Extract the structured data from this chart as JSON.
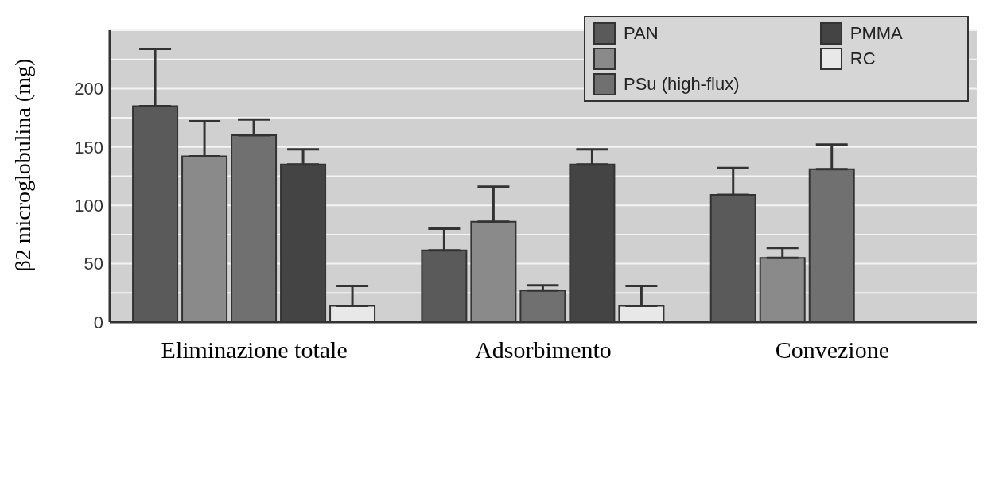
{
  "chart_data": {
    "type": "bar",
    "ylabel": "β2 microglobulina (mg)",
    "categories": [
      "Eliminazione totale",
      "Adsorbimento",
      "Convezione"
    ],
    "series": [
      {
        "name": "PAN",
        "color": "#5a5a5a",
        "values": [
          185,
          61.5,
          109
        ],
        "errors": [
          [
            185,
            234
          ],
          [
            61.5,
            80
          ],
          [
            109,
            132
          ]
        ]
      },
      {
        "color": "#8a8a8a",
        "values": [
          142,
          86,
          55
        ],
        "errors": [
          [
            142,
            172
          ],
          [
            86,
            116
          ],
          [
            55,
            63.5
          ]
        ]
      },
      {
        "name": "PSu (high-flux)",
        "color": "#707070",
        "values": [
          160,
          27,
          131
        ],
        "errors": [
          [
            160,
            173.5
          ],
          [
            27,
            31.5
          ],
          [
            131,
            152
          ]
        ]
      },
      {
        "name": "PMMA",
        "color": "#444444",
        "values": [
          135,
          135,
          null
        ],
        "errors": [
          [
            135,
            148
          ],
          [
            135,
            148
          ],
          null
        ]
      },
      {
        "name": "RC",
        "color": "#e8e8e8",
        "values": [
          14,
          14,
          null
        ],
        "errors": [
          [
            14,
            31
          ],
          [
            14,
            31
          ],
          null
        ]
      }
    ],
    "ylim": [
      0,
      250
    ],
    "yticks": [
      0,
      {
        "value": 25,
        "label": null
      },
      50,
      {
        "value": 75,
        "label": null
      },
      100,
      {
        "value": 125,
        "label": null
      },
      150,
      {
        "value": 175,
        "label": null
      },
      200,
      {
        "value": 225,
        "label": null
      },
      {
        "value": 250,
        "label": null
      }
    ],
    "grid": "y",
    "legend": "top right"
  }
}
